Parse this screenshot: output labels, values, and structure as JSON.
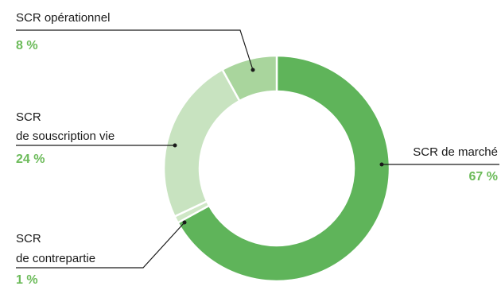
{
  "colors": {
    "percent_text": "#6cbb5a"
  },
  "chart_data": {
    "type": "pie",
    "donut": true,
    "unit": "%",
    "slices": [
      {
        "label_lines": [
          "SCR de marché"
        ],
        "value": 67,
        "value_label": "67 %",
        "color": "#5fb45a"
      },
      {
        "label_lines": [
          "SCR",
          "de contrepartie"
        ],
        "value": 1,
        "value_label": "1 %",
        "color": "#cfe7c6"
      },
      {
        "label_lines": [
          "SCR",
          "de souscription vie"
        ],
        "value": 24,
        "value_label": "24 %",
        "color": "#c8e3c0"
      },
      {
        "label_lines": [
          "SCR opérationnel"
        ],
        "value": 8,
        "value_label": "8 %",
        "color": "#a9d59d"
      }
    ]
  }
}
